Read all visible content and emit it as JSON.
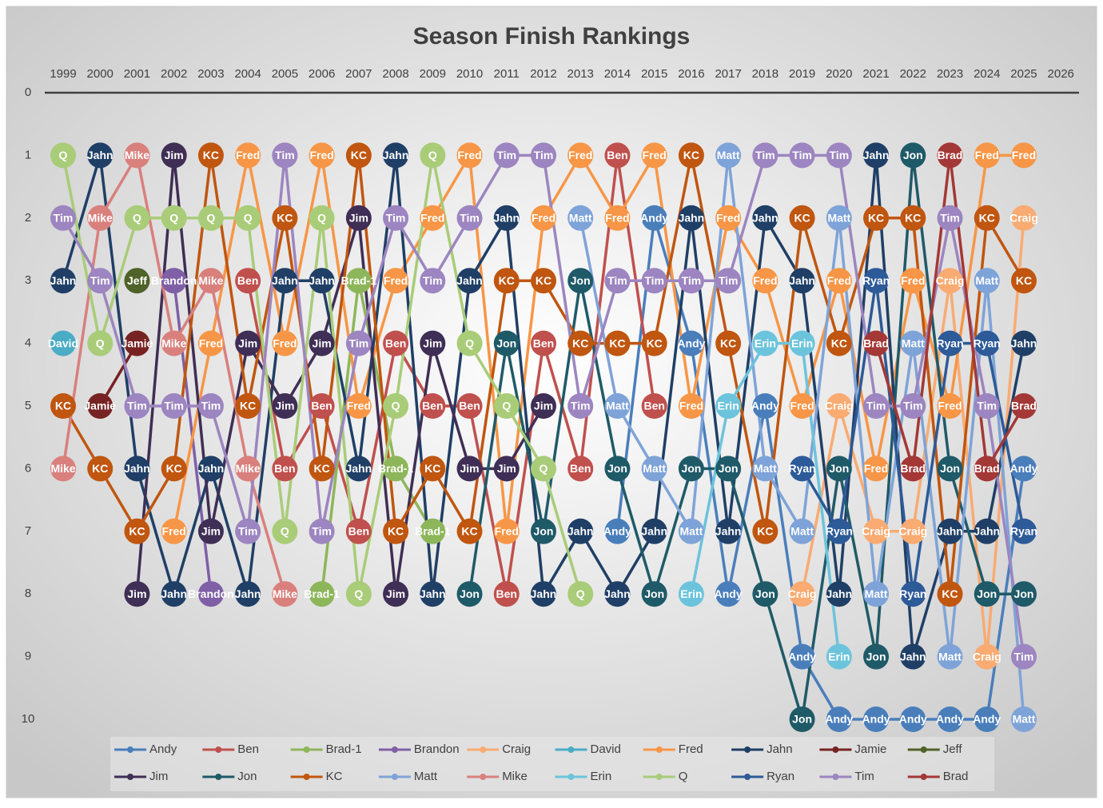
{
  "chart_data": {
    "type": "line",
    "title": "Season Finish Rankings",
    "categories": [
      "1999",
      "2000",
      "2001",
      "2002",
      "2003",
      "2004",
      "2005",
      "2006",
      "2007",
      "2008",
      "2009",
      "2010",
      "2011",
      "2012",
      "2013",
      "2014",
      "2015",
      "2016",
      "2017",
      "2018",
      "2019",
      "2020",
      "2021",
      "2022",
      "2023",
      "2024",
      "2025",
      "2026"
    ],
    "ylim": [
      0,
      10
    ],
    "yticks": [
      0,
      1,
      2,
      3,
      4,
      5,
      6,
      7,
      8,
      9,
      10
    ],
    "y_reversed": true,
    "x_axis_position": "top",
    "legend": "bottom",
    "markers": true,
    "series": [
      {
        "name": "Andy",
        "color": "#4a7ebb",
        "values": [
          null,
          null,
          null,
          null,
          null,
          null,
          null,
          null,
          null,
          null,
          null,
          null,
          null,
          null,
          null,
          7,
          2,
          4,
          8,
          5,
          9,
          10,
          10,
          10,
          10,
          10,
          6,
          null
        ]
      },
      {
        "name": "Ben",
        "color": "#c0504d",
        "values": [
          null,
          null,
          null,
          null,
          null,
          3,
          6,
          5,
          7,
          4,
          5,
          5,
          8,
          4,
          6,
          1,
          5,
          null,
          null,
          null,
          null,
          null,
          null,
          null,
          null,
          null,
          null,
          null
        ]
      },
      {
        "name": "Brad-1",
        "color": "#8db65a",
        "values": [
          null,
          null,
          null,
          null,
          null,
          null,
          null,
          8,
          3,
          6,
          7,
          null,
          null,
          null,
          null,
          null,
          null,
          null,
          null,
          null,
          null,
          null,
          null,
          null,
          null,
          null,
          null,
          null
        ]
      },
      {
        "name": "Brandon",
        "color": "#7f5fa6",
        "values": [
          null,
          null,
          null,
          3,
          8,
          null,
          null,
          null,
          null,
          null,
          null,
          null,
          null,
          null,
          null,
          null,
          null,
          null,
          null,
          null,
          null,
          null,
          null,
          null,
          null,
          null,
          null,
          null
        ]
      },
      {
        "name": "Craig",
        "color": "#f9ab72",
        "values": [
          null,
          null,
          null,
          null,
          null,
          null,
          null,
          null,
          null,
          null,
          null,
          null,
          null,
          null,
          null,
          null,
          null,
          null,
          null,
          null,
          8,
          5,
          7,
          7,
          3,
          9,
          2,
          null
        ]
      },
      {
        "name": "David",
        "color": "#4bacc6",
        "values": [
          4,
          null,
          null,
          null,
          null,
          null,
          null,
          null,
          null,
          null,
          null,
          null,
          null,
          null,
          null,
          null,
          null,
          null,
          null,
          null,
          null,
          null,
          null,
          null,
          null,
          null,
          null,
          null
        ]
      },
      {
        "name": "Fred",
        "color": "#f79646",
        "values": [
          null,
          null,
          null,
          7,
          4,
          1,
          4,
          1,
          5,
          3,
          2,
          1,
          7,
          2,
          1,
          2,
          1,
          5,
          2,
          3,
          5,
          3,
          6,
          3,
          5,
          1,
          1,
          null
        ]
      },
      {
        "name": "Jahn",
        "color": "#1f3f66",
        "values": [
          3,
          1,
          6,
          8,
          6,
          8,
          3,
          3,
          6,
          1,
          8,
          3,
          2,
          8,
          7,
          8,
          7,
          2,
          7,
          2,
          3,
          8,
          1,
          9,
          7,
          7,
          4,
          null
        ]
      },
      {
        "name": "Jamie",
        "color": "#772323",
        "values": [
          null,
          5,
          4,
          null,
          null,
          null,
          null,
          null,
          null,
          null,
          null,
          null,
          null,
          null,
          null,
          null,
          null,
          null,
          null,
          null,
          null,
          null,
          null,
          null,
          null,
          null,
          null,
          null
        ]
      },
      {
        "name": "Jeff",
        "color": "#4f6228",
        "values": [
          null,
          null,
          3,
          null,
          null,
          null,
          null,
          null,
          null,
          null,
          null,
          null,
          null,
          null,
          null,
          null,
          null,
          null,
          null,
          null,
          null,
          null,
          null,
          null,
          null,
          null,
          null,
          null
        ]
      },
      {
        "name": "Jim",
        "color": "#3f2e55",
        "values": [
          null,
          null,
          8,
          1,
          7,
          4,
          5,
          4,
          2,
          8,
          4,
          6,
          6,
          5,
          null,
          null,
          null,
          null,
          null,
          null,
          null,
          null,
          null,
          null,
          null,
          null,
          null,
          null
        ]
      },
      {
        "name": "Jon",
        "color": "#1f5a68",
        "values": [
          null,
          null,
          null,
          null,
          null,
          null,
          null,
          null,
          null,
          null,
          null,
          8,
          4,
          7,
          3,
          6,
          8,
          6,
          6,
          8,
          10,
          6,
          9,
          1,
          6,
          8,
          8,
          null
        ]
      },
      {
        "name": "KC",
        "color": "#c0560f",
        "values": [
          5,
          6,
          7,
          6,
          1,
          5,
          2,
          6,
          1,
          7,
          6,
          7,
          3,
          3,
          4,
          4,
          4,
          1,
          4,
          7,
          2,
          4,
          2,
          2,
          8,
          2,
          3,
          null
        ]
      },
      {
        "name": "Matt",
        "color": "#7ea3d8",
        "values": [
          null,
          null,
          null,
          null,
          null,
          null,
          null,
          null,
          null,
          null,
          null,
          null,
          null,
          null,
          2,
          5,
          6,
          7,
          1,
          6,
          7,
          2,
          8,
          4,
          9,
          3,
          10,
          null
        ]
      },
      {
        "name": "Mike",
        "color": "#d9807d",
        "values": [
          6,
          2,
          1,
          4,
          3,
          6,
          8,
          null,
          null,
          null,
          null,
          null,
          null,
          null,
          null,
          null,
          null,
          null,
          null,
          null,
          null,
          null,
          null,
          null,
          null,
          null,
          null,
          null
        ]
      },
      {
        "name": "Erin",
        "color": "#6cc4dc",
        "values": [
          null,
          null,
          null,
          null,
          null,
          null,
          null,
          null,
          null,
          null,
          null,
          null,
          null,
          null,
          null,
          null,
          null,
          8,
          5,
          4,
          4,
          9,
          null,
          null,
          null,
          null,
          null,
          null
        ]
      },
      {
        "name": "Q",
        "color": "#a9cc78",
        "values": [
          1,
          4,
          2,
          2,
          2,
          2,
          7,
          2,
          8,
          5,
          1,
          4,
          5,
          6,
          8,
          null,
          null,
          null,
          null,
          null,
          null,
          null,
          null,
          null,
          null,
          null,
          null,
          null
        ]
      },
      {
        "name": "Ryan",
        "color": "#2d5a98",
        "values": [
          null,
          null,
          null,
          null,
          null,
          null,
          null,
          null,
          null,
          null,
          null,
          null,
          null,
          null,
          null,
          null,
          null,
          null,
          null,
          null,
          6,
          7,
          3,
          8,
          4,
          4,
          7,
          null
        ]
      },
      {
        "name": "Tim",
        "color": "#9c85c0",
        "values": [
          2,
          3,
          5,
          5,
          5,
          7,
          1,
          7,
          4,
          2,
          3,
          2,
          1,
          1,
          5,
          3,
          3,
          3,
          3,
          1,
          1,
          1,
          5,
          5,
          2,
          5,
          9,
          null
        ]
      },
      {
        "name": "Brad",
        "color": "#a33836",
        "values": [
          null,
          null,
          null,
          null,
          null,
          null,
          null,
          null,
          null,
          null,
          null,
          null,
          null,
          null,
          null,
          null,
          null,
          null,
          null,
          null,
          null,
          null,
          4,
          6,
          1,
          6,
          5,
          null
        ]
      }
    ]
  }
}
